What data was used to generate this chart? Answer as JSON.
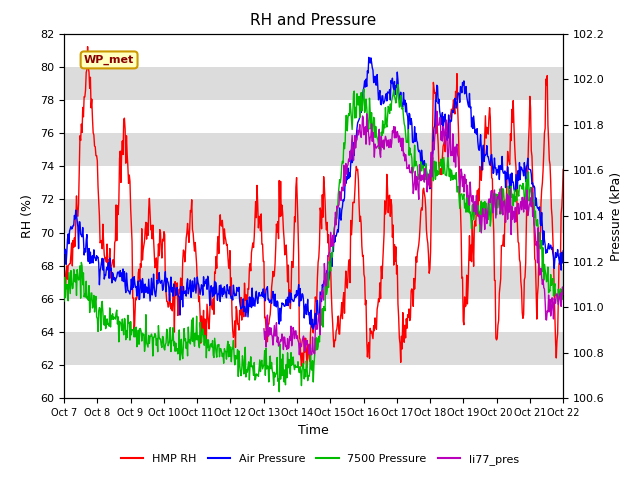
{
  "title": "RH and Pressure",
  "xlabel": "Time",
  "ylabel_left": "RH (%)",
  "ylabel_right": "Pressure (kPa)",
  "ylim_left": [
    60,
    82
  ],
  "ylim_right": [
    100.6,
    102.2
  ],
  "yticks_left": [
    60,
    62,
    64,
    66,
    68,
    70,
    72,
    74,
    76,
    78,
    80,
    82
  ],
  "yticks_right": [
    100.6,
    100.8,
    101.0,
    101.2,
    101.4,
    101.6,
    101.8,
    102.0,
    102.2
  ],
  "xtick_labels": [
    "Oct 7",
    "Oct 8",
    "Oct 9",
    "Oct 10",
    "Oct 11",
    "Oct 12",
    "Oct 13",
    "Oct 14",
    "Oct 15",
    "Oct 16",
    "Oct 17",
    "Oct 18",
    "Oct 19",
    "Oct 20",
    "Oct 21",
    "Oct 22"
  ],
  "annotation_text": "WP_met",
  "colors": {
    "HMP_RH": "#FF0000",
    "Air_Pressure": "#0000FF",
    "Pressure_7500": "#00BB00",
    "li77_pres": "#BB00BB"
  },
  "legend_labels": [
    "HMP RH",
    "Air Pressure",
    "7500 Pressure",
    "li77_pres"
  ],
  "bg_band_colors": [
    "#E8E8E8",
    "#D8D8D8"
  ]
}
